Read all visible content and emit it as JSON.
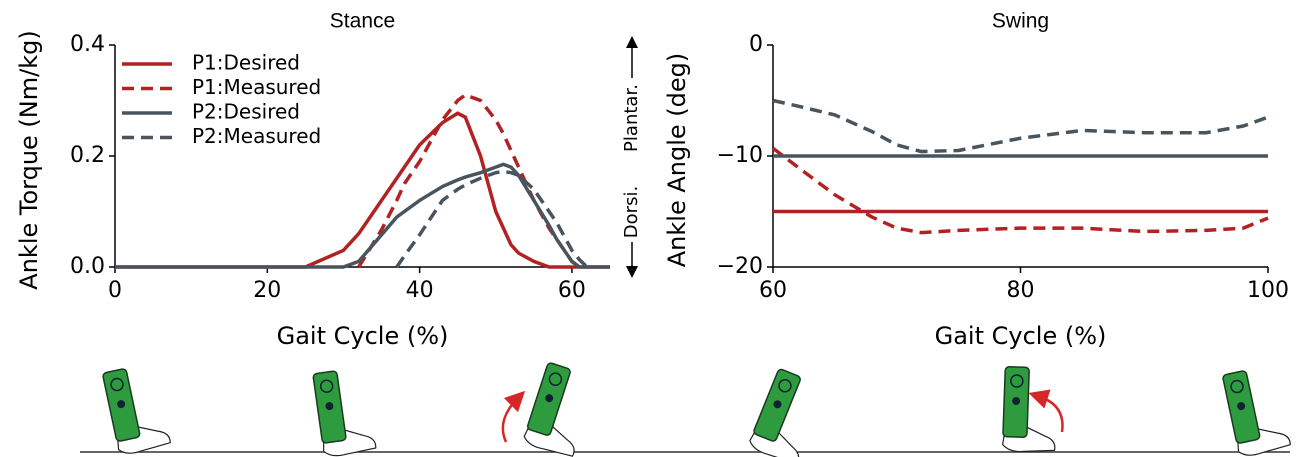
{
  "chart_data": [
    {
      "type": "line",
      "title": "Stance",
      "xlabel": "Gait Cycle (%)",
      "ylabel": "Ankle Torque (Nm/kg)",
      "xlim": [
        0,
        65
      ],
      "ylim": [
        0,
        0.4
      ],
      "xticks": [
        0,
        20,
        40,
        60
      ],
      "yticks": [
        {
          "value": 0,
          "label": "0.0"
        },
        0.2,
        0.4
      ],
      "legend": "upper left",
      "x": [
        0,
        20,
        25,
        30,
        32,
        35,
        37,
        38,
        40,
        43,
        45,
        46,
        48,
        50,
        51,
        52,
        53,
        55,
        57,
        58,
        60,
        61,
        62,
        65
      ],
      "series": [
        {
          "name": "P1:Desired",
          "color": "#b22222",
          "dashed": false,
          "values": [
            0,
            0,
            0,
            0.03,
            0.06,
            0.12,
            0.16,
            0.18,
            0.22,
            0.26,
            0.277,
            0.27,
            0.2,
            0.1,
            0.07,
            0.04,
            0.025,
            0.01,
            0,
            0,
            0,
            0,
            0,
            0
          ]
        },
        {
          "name": "P1:Measured",
          "color": "#b22222",
          "dashed": true,
          "values": [
            null,
            null,
            null,
            null,
            0,
            0.067,
            0.12,
            0.15,
            0.19,
            0.265,
            0.3,
            0.31,
            0.3,
            0.265,
            0.24,
            0.21,
            0.18,
            0.12,
            0.07,
            0.05,
            0.01,
            0,
            null,
            null
          ]
        },
        {
          "name": "P2:Desired",
          "color": "#48555f",
          "dashed": false,
          "values": [
            0,
            0,
            0,
            0,
            0.01,
            0.058,
            0.09,
            0.1,
            0.12,
            0.145,
            0.157,
            0.162,
            0.17,
            0.18,
            0.185,
            0.18,
            0.165,
            0.12,
            0.075,
            0.05,
            0.01,
            0,
            0,
            0
          ]
        },
        {
          "name": "P2:Measured",
          "color": "#48555f",
          "dashed": true,
          "values": [
            null,
            null,
            null,
            null,
            null,
            null,
            0,
            0.02,
            0.058,
            0.12,
            0.14,
            0.148,
            0.16,
            0.17,
            0.172,
            0.17,
            0.165,
            0.14,
            0.1,
            0.08,
            0.03,
            0.013,
            0,
            null
          ]
        }
      ]
    },
    {
      "type": "line",
      "title": "Swing",
      "xlabel": "Gait Cycle (%)",
      "ylabel": "Ankle Angle (deg)",
      "annotations": [
        "Plantar.",
        "Dorsi."
      ],
      "xlim": [
        60,
        100
      ],
      "ylim": [
        -20,
        0
      ],
      "xticks": [
        60,
        80,
        100
      ],
      "yticks": [
        {
          "value": -20,
          "label": "−20"
        },
        {
          "value": -10,
          "label": "−10"
        },
        0
      ],
      "x": [
        60,
        62,
        65,
        68,
        70,
        72,
        75,
        80,
        85,
        90,
        95,
        98,
        100
      ],
      "series": [
        {
          "color": "#b22222",
          "dashed": false,
          "values": [
            -15,
            -15,
            -15,
            -15,
            -15,
            -15,
            -15,
            -15,
            -15,
            -15,
            -15,
            -15,
            -15
          ]
        },
        {
          "color": "#b22222",
          "dashed": true,
          "values": [
            -9.3,
            -11,
            -13.5,
            -15.5,
            -16.5,
            -16.9,
            -16.7,
            -16.5,
            -16.5,
            -16.8,
            -16.7,
            -16.5,
            -15.6
          ]
        },
        {
          "color": "#48555f",
          "dashed": false,
          "values": [
            -10,
            -10,
            -10,
            -10,
            -10,
            -10,
            -10,
            -10,
            -10,
            -10,
            -10,
            -10,
            -10
          ]
        },
        {
          "color": "#48555f",
          "dashed": true,
          "values": [
            -5,
            -5.5,
            -6.3,
            -7.8,
            -9,
            -9.6,
            -9.5,
            -8.4,
            -7.7,
            -7.9,
            -7.9,
            -7.3,
            -6.5
          ]
        }
      ]
    }
  ]
}
